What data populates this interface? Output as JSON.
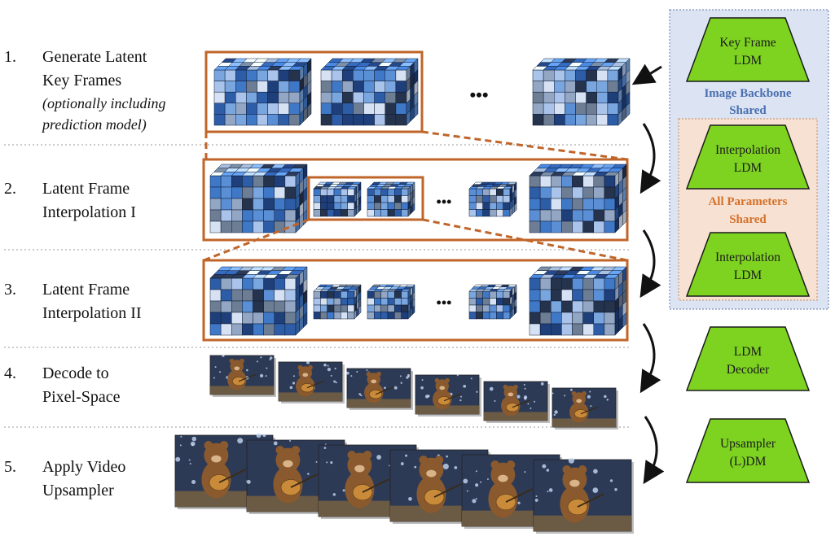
{
  "steps": [
    {
      "number": "1.",
      "lines": [
        "Generate Latent",
        "Key Frames"
      ],
      "note_lines": [
        "(optionally including",
        "prediction model)"
      ]
    },
    {
      "number": "2.",
      "lines": [
        "Latent Frame",
        "Interpolation I"
      ],
      "note_lines": []
    },
    {
      "number": "3.",
      "lines": [
        "Latent Frame",
        "Interpolation II"
      ],
      "note_lines": []
    },
    {
      "number": "4.",
      "lines": [
        "Decode to",
        "Pixel-Space"
      ],
      "note_lines": []
    },
    {
      "number": "5.",
      "lines": [
        "Apply Video",
        "Upsampler"
      ],
      "note_lines": []
    }
  ],
  "ellipsis": "•••",
  "modules": [
    {
      "lines": [
        "Key Frame",
        "LDM"
      ]
    },
    {
      "lines": [
        "Interpolation",
        "LDM"
      ]
    },
    {
      "lines": [
        "Interpolation",
        "LDM"
      ]
    },
    {
      "lines": [
        "LDM",
        "Decoder"
      ]
    },
    {
      "lines": [
        "Upsampler",
        "(L)DM"
      ]
    }
  ],
  "groups": {
    "image_backbone": {
      "lines": [
        "Image Backbone",
        "Shared"
      ]
    },
    "all_parameters": {
      "lines": [
        "All Parameters",
        "Shared"
      ]
    }
  },
  "colors": {
    "frame_border": "#c0652a",
    "module_fill": "#7ed321",
    "backbone_bg": "#dce4f3",
    "backbone_label": "#4a6fb0",
    "params_bg": "#f7e1d2",
    "params_label": "#d4722c",
    "cube_palette": [
      "#1f3f7a",
      "#2e5da8",
      "#3f78c7",
      "#5a8fd6",
      "#7aa6e0",
      "#a9c3ea",
      "#d6e2f3",
      "#6d7d94",
      "#26334d",
      "#93a7c4"
    ],
    "photo_sky": "#2c3a56",
    "photo_bear": "#8a5a2e",
    "photo_guitar": "#c98a3a"
  }
}
